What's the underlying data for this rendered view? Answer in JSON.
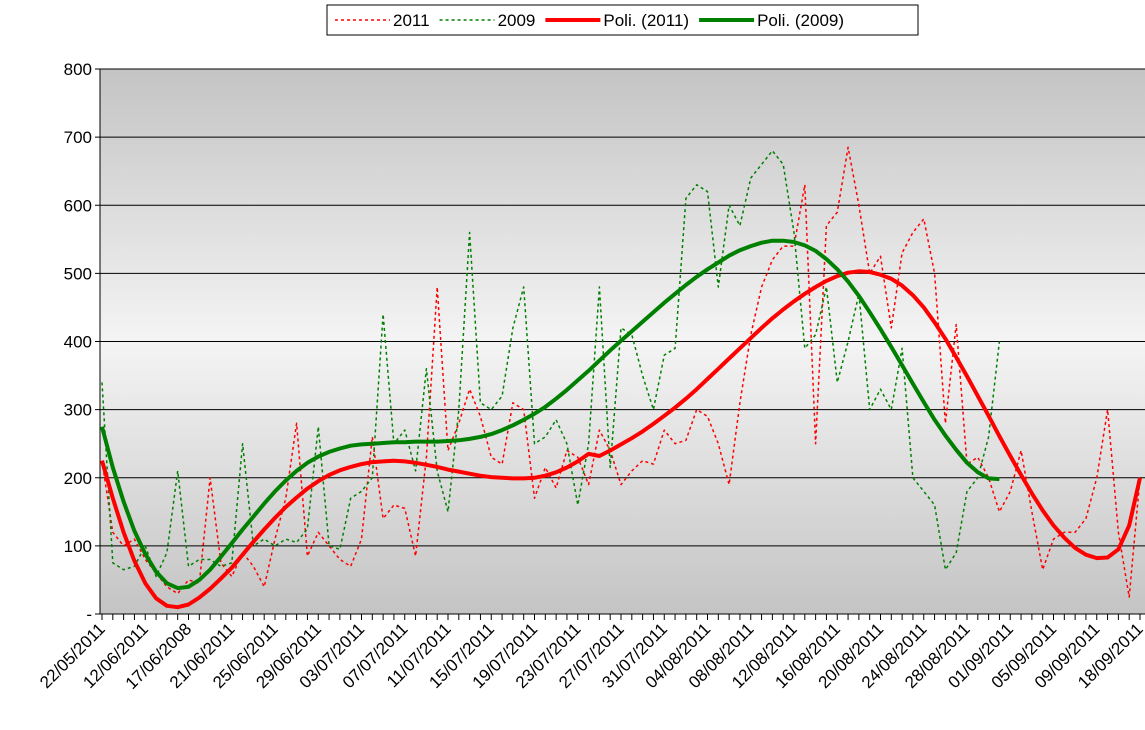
{
  "chart_data": {
    "type": "line",
    "categories": [
      "22/05/2011",
      null,
      null,
      null,
      "12/06/2011",
      null,
      null,
      null,
      "17/06/2008",
      null,
      null,
      null,
      "21/06/2011",
      null,
      null,
      null,
      "25/06/2011",
      null,
      null,
      null,
      "29/06/2011",
      null,
      null,
      null,
      "03/07/2011",
      null,
      null,
      null,
      "07/07/2011",
      null,
      null,
      null,
      "11/07/2011",
      null,
      null,
      null,
      "15/07/2011",
      null,
      null,
      null,
      "19/07/2011",
      null,
      null,
      null,
      "23/07/2011",
      null,
      null,
      null,
      "27/07/2011",
      null,
      null,
      null,
      "31/07/2011",
      null,
      null,
      null,
      "04/08/2011",
      null,
      null,
      null,
      "08/08/2011",
      null,
      null,
      null,
      "12/08/2011",
      null,
      null,
      null,
      "16/08/2011",
      null,
      null,
      null,
      "20/08/2011",
      null,
      null,
      null,
      "24/08/2011",
      null,
      null,
      null,
      "28/08/2011",
      null,
      null,
      null,
      "01/09/2011",
      null,
      null,
      null,
      "05/09/2011",
      null,
      null,
      null,
      "09/09/2011",
      null,
      null,
      null,
      "18/09/2011"
    ],
    "series": [
      {
        "name": "2011",
        "color": "#ff0000",
        "line_style": "dotted",
        "values": [
          225,
          120,
          100,
          110,
          80,
          60,
          40,
          30,
          50,
          45,
          200,
          75,
          55,
          90,
          70,
          40,
          110,
          170,
          280,
          85,
          120,
          100,
          80,
          70,
          110,
          260,
          140,
          160,
          155,
          85,
          230,
          480,
          240,
          280,
          330,
          290,
          230,
          220,
          310,
          300,
          170,
          215,
          185,
          240,
          230,
          190,
          270,
          240,
          190,
          210,
          225,
          220,
          270,
          250,
          255,
          300,
          290,
          250,
          190,
          310,
          410,
          480,
          520,
          540,
          540,
          630,
          250,
          570,
          590,
          685,
          600,
          500,
          525,
          420,
          530,
          560,
          580,
          500,
          280,
          425,
          220,
          230,
          200,
          150,
          180,
          240,
          150,
          65,
          110,
          120,
          120,
          140,
          200,
          300,
          120,
          25,
          200
        ]
      },
      {
        "name": "2009",
        "color": "#008000",
        "line_style": "dotted",
        "values": [
          340,
          75,
          65,
          70,
          100,
          55,
          90,
          210,
          70,
          80,
          80,
          70,
          75,
          250,
          100,
          110,
          100,
          110,
          105,
          125,
          275,
          100,
          95,
          170,
          180,
          200,
          440,
          250,
          270,
          210,
          360,
          210,
          150,
          300,
          560,
          310,
          300,
          320,
          420,
          480,
          250,
          260,
          285,
          250,
          160,
          250,
          480,
          215,
          420,
          410,
          350,
          300,
          380,
          390,
          610,
          630,
          620,
          480,
          600,
          570,
          640,
          660,
          680,
          660,
          560,
          390,
          410,
          480,
          340,
          400,
          470,
          300,
          330,
          300,
          390,
          200,
          180,
          160,
          65,
          90,
          180,
          200,
          260,
          400,
          null,
          null,
          null,
          null,
          null,
          null,
          null,
          null,
          null,
          null,
          null,
          null,
          null
        ]
      },
      {
        "name": "Poli. (2011)",
        "color": "#ff0000",
        "line_style": "solid",
        "values": [
          225,
          170,
          120,
          78,
          45,
          23,
          12,
          10,
          14,
          24,
          37,
          52,
          68,
          87,
          106,
          124,
          141,
          157,
          171,
          184,
          195,
          204,
          211,
          216,
          220,
          223,
          224,
          225,
          224,
          222,
          219,
          216,
          212,
          209,
          206,
          203,
          201,
          200,
          199,
          199,
          200,
          203,
          208,
          215,
          224,
          235,
          232,
          240,
          249,
          258,
          268,
          279,
          291,
          303,
          316,
          330,
          345,
          360,
          375,
          390,
          405,
          420,
          434,
          447,
          459,
          470,
          480,
          489,
          496,
          501,
          503,
          502,
          498,
          492,
          482,
          468,
          450,
          428,
          404,
          377,
          349,
          320,
          291,
          261,
          232,
          204,
          177,
          152,
          130,
          112,
          97,
          87,
          82,
          83,
          95,
          130,
          200
        ]
      },
      {
        "name": "Poli. (2009)",
        "color": "#008000",
        "line_style": "solid",
        "values": [
          275,
          215,
          165,
          122,
          88,
          62,
          45,
          38,
          40,
          50,
          65,
          84,
          104,
          124,
          143,
          162,
          180,
          196,
          210,
          222,
          231,
          238,
          243,
          247,
          249,
          250,
          251,
          252,
          252,
          253,
          253,
          253,
          254,
          255,
          257,
          260,
          264,
          270,
          277,
          285,
          294,
          304,
          316,
          329,
          343,
          357,
          372,
          387,
          401,
          415,
          429,
          443,
          457,
          470,
          483,
          495,
          506,
          516,
          526,
          534,
          540,
          545,
          548,
          548,
          546,
          541,
          533,
          521,
          506,
          488,
          467,
          443,
          418,
          392,
          365,
          338,
          311,
          285,
          262,
          241,
          222,
          208,
          199,
          198,
          null,
          null,
          null,
          null,
          null,
          null,
          null,
          null,
          null,
          null,
          null,
          null,
          null
        ]
      }
    ],
    "ylim": [
      0,
      800
    ],
    "yticks": [
      {
        "value": 0,
        "label": "-"
      },
      100,
      200,
      300,
      400,
      500,
      600,
      700,
      800
    ],
    "grid": true,
    "legend": "top"
  }
}
